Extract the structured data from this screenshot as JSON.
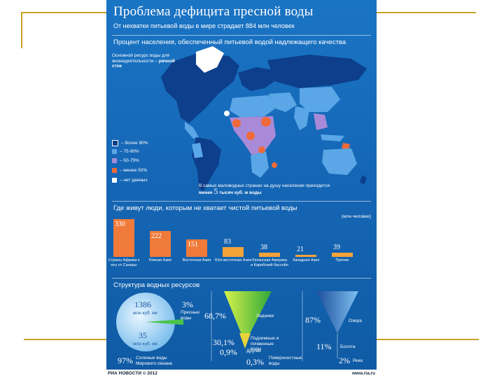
{
  "colors": {
    "frame": "#c9a227",
    "poster": "#1567b6",
    "over90": "#0d3f8c",
    "r75_90": "#5aa6e6",
    "r50_75": "#a98ad8",
    "under50": "#ef6a3a",
    "nodata": "#ffffff",
    "bar": "#f07a3a",
    "barlow": "#f4a23a",
    "land": "#3b8ee0"
  },
  "poster": {
    "title": "Проблема дефицита пресной воды",
    "subtitle": "От нехватки питьевой воды в мире страдает 884 млн человек",
    "map_section": "Процент населения, обеспеченный питьевой водой надлежащего качества",
    "map_note": "Основной ресурс воды для жизнедеятельности –",
    "map_note_bold": "речной сток",
    "legend": [
      "– более 90%",
      "– 75-90%",
      "– 50-75%",
      "– менее 50%",
      "– нет данных"
    ],
    "map_caption_1": "В самых маловодных странах на душу населения приходится",
    "map_caption_2a": "менее",
    "map_caption_num": "5",
    "map_caption_2b": "тысяч куб. м воды",
    "bars_section": "Где живут люди, которым не хватает чистой питьевой воды",
    "bars_unit": "(млн человек)",
    "resources_section": "Структура водных ресурсов",
    "circle_top": "1386",
    "circle_top_unit": "млн куб. км",
    "circle_bottom": "35",
    "circle_bottom_unit": "млн куб. км",
    "pct_97": "97%",
    "label_97": "Соленые воды Мирового океана",
    "pct_3": "3%",
    "label_3": "Пресные воды",
    "pct_68": "68,7%",
    "label_68": "Ледники",
    "pct_30": "30,1%",
    "label_30": "Подземные и почвенные воды",
    "pct_09": "0,9%",
    "label_09": "Другие",
    "pct_03": "0,3%",
    "label_03": "Поверхностные воды",
    "pct_87": "87%",
    "label_87": "Озера",
    "pct_11": "11%",
    "label_11": "Болота",
    "pct_2": "2%",
    "label_2": "Реки"
  },
  "footer": {
    "left": "РИА НОВОСТИ © 2012",
    "right": "www.ria.ru"
  },
  "chart_data": {
    "type": "bar",
    "title": "Где живут люди, которым не хватает чистой питьевой воды",
    "ylabel": "(млн человек)",
    "categories": [
      "Страны Африки к югу от Сахары",
      "Южная Азия",
      "Восточная Азия",
      "Юго-восточная Азия",
      "Латинская Америка и Карибский бассейн",
      "Западная Азия",
      "Прочие"
    ],
    "values": [
      330,
      222,
      151,
      83,
      38,
      21,
      39
    ],
    "ylim": [
      0,
      340
    ]
  }
}
